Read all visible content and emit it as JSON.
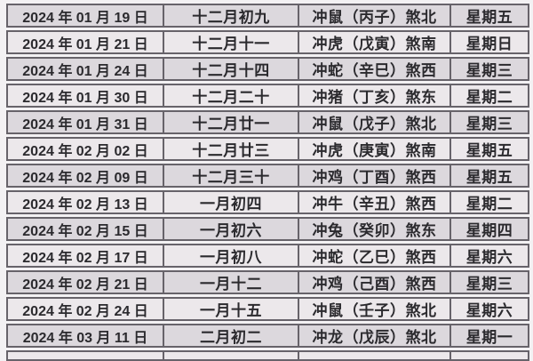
{
  "colors": {
    "row_dark": "#dcd8dd",
    "row_light": "#ece8eb",
    "border": "#67636a",
    "text": "#2b2a2e",
    "background": "#f3f1f3"
  },
  "table": {
    "columns": [
      "gregorian-date",
      "lunar-date",
      "clash-info",
      "weekday"
    ],
    "rows": [
      {
        "date": "2024 年 01 月 19 日",
        "lunar": "十二月初九",
        "chong": "冲鼠（丙子）煞北",
        "weekday": "星期五"
      },
      {
        "date": "2024 年 01 月 21 日",
        "lunar": "十二月十一",
        "chong": "冲虎（戊寅）煞南",
        "weekday": "星期日"
      },
      {
        "date": "2024 年 01 月 24 日",
        "lunar": "十二月十四",
        "chong": "冲蛇（辛巳）煞西",
        "weekday": "星期三"
      },
      {
        "date": "2024 年 01 月 30 日",
        "lunar": "十二月二十",
        "chong": "冲猪（丁亥）煞东",
        "weekday": "星期二"
      },
      {
        "date": "2024 年 01 月 31 日",
        "lunar": "十二月廿一",
        "chong": "冲鼠（戊子）煞北",
        "weekday": "星期三"
      },
      {
        "date": "2024 年 02 月 02 日",
        "lunar": "十二月廿三",
        "chong": "冲虎（庚寅）煞南",
        "weekday": "星期五"
      },
      {
        "date": "2024 年 02 月 09 日",
        "lunar": "十二月三十",
        "chong": "冲鸡（丁酉）煞西",
        "weekday": "星期五"
      },
      {
        "date": "2024 年 02 月 13 日",
        "lunar": "一月初四",
        "chong": "冲牛（辛丑）煞西",
        "weekday": "星期二"
      },
      {
        "date": "2024 年 02 月 15 日",
        "lunar": "一月初六",
        "chong": "冲兔（癸卯）煞东",
        "weekday": "星期四"
      },
      {
        "date": "2024 年 02 月 17 日",
        "lunar": "一月初八",
        "chong": "冲蛇（乙巳）煞西",
        "weekday": "星期六"
      },
      {
        "date": "2024 年 02 月 21 日",
        "lunar": "一月十二",
        "chong": "冲鸡（己酉）煞西",
        "weekday": "星期三"
      },
      {
        "date": "2024 年 02 月 24 日",
        "lunar": "一月十五",
        "chong": "冲鼠（壬子）煞北",
        "weekday": "星期六"
      },
      {
        "date": "2024 年 03 月 11 日",
        "lunar": "二月初二",
        "chong": "冲龙（戊辰）煞北",
        "weekday": "星期一"
      }
    ]
  }
}
